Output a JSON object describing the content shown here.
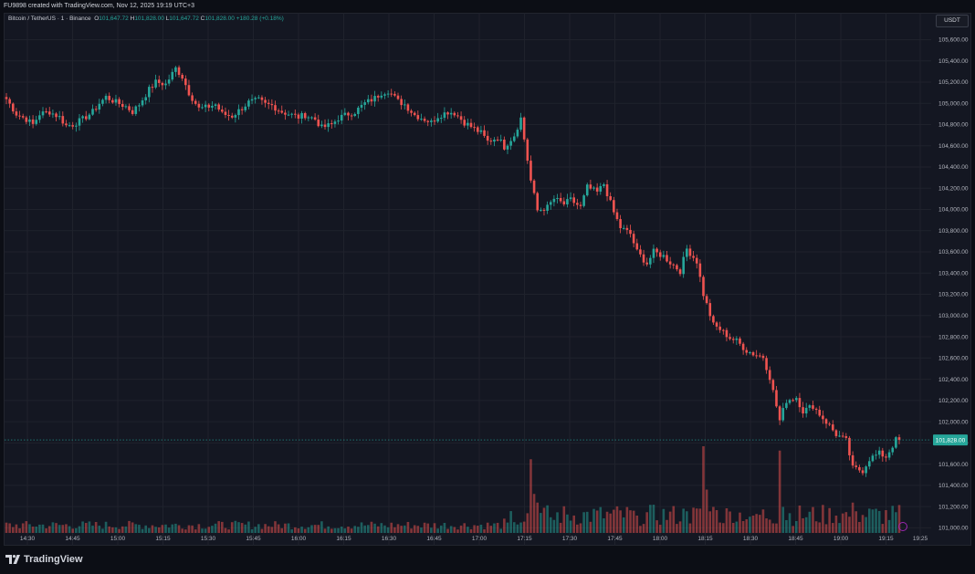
{
  "header": {
    "credit": "FU9898 created with TradingView.com, Nov 12, 2025 19:19 UTC+3"
  },
  "legend": {
    "symbol": "Bitcoin / TetherUS · 1 · Binance",
    "open_label": "O",
    "open": "101,647.72",
    "high_label": "H",
    "high": "101,828.00",
    "low_label": "L",
    "low": "101,647.72",
    "close_label": "C",
    "close": "101,828.00",
    "change": "+180.28 (+0.18%)"
  },
  "currency": "USDT",
  "brand": "TradingView",
  "colors": {
    "up": "#26a69a",
    "down": "#ef5350",
    "bg": "#141722",
    "grid": "#1f222c",
    "text": "#b2b5be"
  },
  "chart_data": {
    "type": "candlestick",
    "ylim": [
      100900,
      105750
    ],
    "y_ticks": [
      101000,
      101200,
      101400,
      101600,
      101800,
      102000,
      102200,
      102400,
      102600,
      102800,
      103000,
      103200,
      103400,
      103600,
      103800,
      104000,
      104200,
      104400,
      104600,
      104800,
      105000,
      105200,
      105400,
      105600
    ],
    "y_tick_labels": [
      "101,000.00",
      "101,200.00",
      "101,400.00",
      "101,600.00",
      "101,800.00",
      "102,000.00",
      "102,200.00",
      "102,400.00",
      "102,600.00",
      "102,800.00",
      "103,000.00",
      "103,200.00",
      "103,400.00",
      "103,600.00",
      "103,800.00",
      "104,000.00",
      "104,200.00",
      "104,400.00",
      "104,600.00",
      "104,800.00",
      "105,000.00",
      "105,200.00",
      "105,400.00",
      "105,600.00"
    ],
    "x_tick_labels": [
      "14:30",
      "14:45",
      "15:00",
      "15:15",
      "15:30",
      "15:45",
      "16:00",
      "16:15",
      "16:30",
      "16:45",
      "17:00",
      "17:15",
      "17:30",
      "17:45",
      "18:00",
      "18:15",
      "18:30",
      "18:45",
      "19:00",
      "19:15",
      "19:25"
    ],
    "last_price": 101828.0,
    "last_price_label": "101,828.00",
    "price_path": [
      [
        0,
        105040
      ],
      [
        3,
        104900
      ],
      [
        6,
        104850
      ],
      [
        8,
        104800
      ],
      [
        10,
        104900
      ],
      [
        13,
        104920
      ],
      [
        16,
        104870
      ],
      [
        18,
        104790
      ],
      [
        20,
        104800
      ],
      [
        23,
        104850
      ],
      [
        26,
        104920
      ],
      [
        28,
        105000
      ],
      [
        30,
        105060
      ],
      [
        33,
        105010
      ],
      [
        36,
        104970
      ],
      [
        38,
        104920
      ],
      [
        40,
        104990
      ],
      [
        43,
        105130
      ],
      [
        45,
        105200
      ],
      [
        48,
        105180
      ],
      [
        51,
        105330
      ],
      [
        53,
        105250
      ],
      [
        55,
        105100
      ],
      [
        58,
        104950
      ],
      [
        60,
        104960
      ],
      [
        63,
        104990
      ],
      [
        65,
        104900
      ],
      [
        68,
        104880
      ],
      [
        70,
        104930
      ],
      [
        73,
        105010
      ],
      [
        76,
        105030
      ],
      [
        78,
        104990
      ],
      [
        80,
        104980
      ],
      [
        83,
        104920
      ],
      [
        85,
        104900
      ],
      [
        88,
        104870
      ],
      [
        90,
        104890
      ],
      [
        93,
        104850
      ],
      [
        95,
        104770
      ],
      [
        98,
        104800
      ],
      [
        100,
        104860
      ],
      [
        103,
        104900
      ],
      [
        105,
        104920
      ],
      [
        108,
        105000
      ],
      [
        111,
        105050
      ],
      [
        113,
        105100
      ],
      [
        115,
        105120
      ],
      [
        118,
        105020
      ],
      [
        120,
        104990
      ],
      [
        123,
        104890
      ],
      [
        126,
        104850
      ],
      [
        128,
        104820
      ],
      [
        130,
        104880
      ],
      [
        133,
        104920
      ],
      [
        135,
        104910
      ],
      [
        138,
        104820
      ],
      [
        140,
        104780
      ],
      [
        143,
        104720
      ],
      [
        145,
        104640
      ],
      [
        148,
        104680
      ],
      [
        150,
        104590
      ],
      [
        153,
        104700
      ],
      [
        155,
        104860
      ],
      [
        158,
        104270
      ],
      [
        160,
        103990
      ],
      [
        163,
        104020
      ],
      [
        165,
        104100
      ],
      [
        168,
        104050
      ],
      [
        170,
        104090
      ],
      [
        173,
        104020
      ],
      [
        175,
        104210
      ],
      [
        178,
        104160
      ],
      [
        180,
        104240
      ],
      [
        183,
        103970
      ],
      [
        185,
        103830
      ],
      [
        188,
        103770
      ],
      [
        190,
        103600
      ],
      [
        193,
        103490
      ],
      [
        195,
        103600
      ],
      [
        198,
        103560
      ],
      [
        200,
        103500
      ],
      [
        203,
        103420
      ],
      [
        205,
        103630
      ],
      [
        208,
        103510
      ],
      [
        210,
        103200
      ],
      [
        213,
        102910
      ],
      [
        215,
        102870
      ],
      [
        218,
        102790
      ],
      [
        220,
        102760
      ],
      [
        223,
        102670
      ],
      [
        225,
        102640
      ],
      [
        228,
        102610
      ],
      [
        230,
        102420
      ],
      [
        233,
        102010
      ],
      [
        235,
        102200
      ],
      [
        238,
        102230
      ],
      [
        240,
        102100
      ],
      [
        243,
        102150
      ],
      [
        245,
        102070
      ],
      [
        248,
        101960
      ],
      [
        250,
        101880
      ],
      [
        253,
        101820
      ],
      [
        255,
        101560
      ],
      [
        258,
        101540
      ],
      [
        260,
        101650
      ],
      [
        263,
        101700
      ],
      [
        265,
        101670
      ],
      [
        268,
        101828
      ]
    ],
    "volume_spikes": [
      [
        158,
        0.85
      ],
      [
        159,
        0.45
      ],
      [
        160,
        0.35
      ],
      [
        210,
        1.0
      ],
      [
        211,
        0.5
      ],
      [
        213,
        0.3
      ],
      [
        233,
        0.95
      ],
      [
        234,
        0.3
      ],
      [
        255,
        0.35
      ],
      [
        256,
        0.25
      ],
      [
        250,
        0.2
      ],
      [
        225,
        0.2
      ],
      [
        205,
        0.25
      ],
      [
        165,
        0.15
      ],
      [
        190,
        0.2
      ]
    ],
    "grid": true,
    "legend_position": "top-left"
  }
}
